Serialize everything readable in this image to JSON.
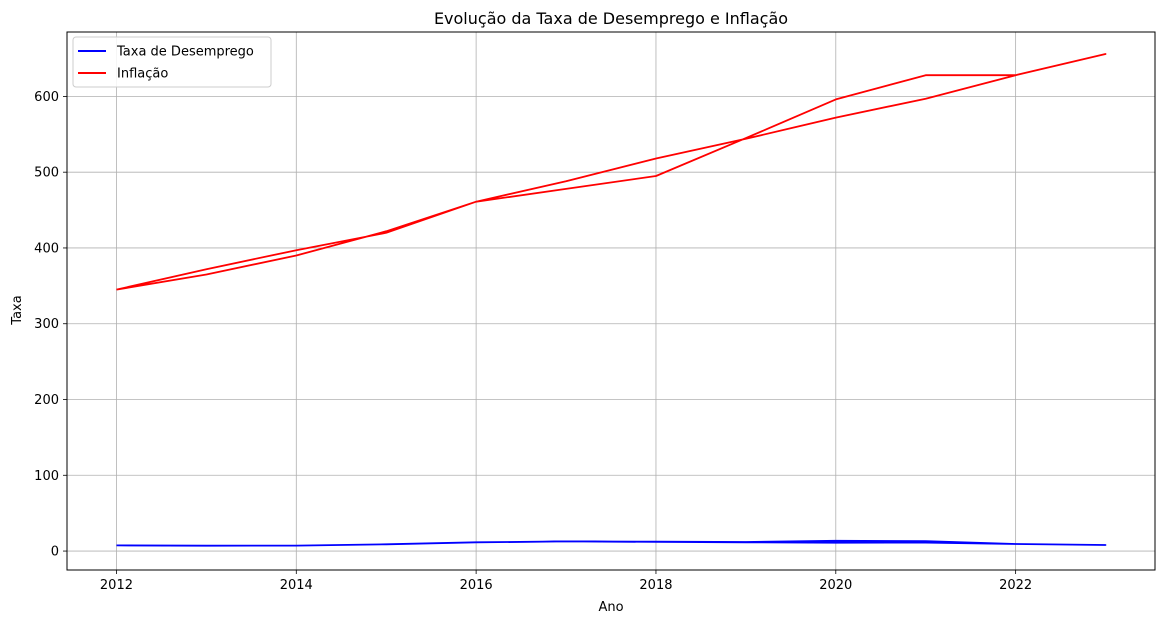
{
  "chart_data": {
    "type": "line",
    "title": "Evolução da Taxa de Desemprego e Inflação",
    "xlabel": "Ano",
    "ylabel": "Taxa",
    "xlim": [
      2011.45,
      2023.55
    ],
    "ylim": [
      -25,
      685
    ],
    "x_ticks": [
      2012,
      2014,
      2016,
      2018,
      2020,
      2022
    ],
    "x_tick_labels": [
      "2012",
      "2014",
      "2016",
      "2018",
      "2020",
      "2022"
    ],
    "y_ticks": [
      0,
      100,
      200,
      300,
      400,
      500,
      600
    ],
    "y_tick_labels": [
      "0",
      "100",
      "200",
      "300",
      "400",
      "500",
      "600"
    ],
    "grid": true,
    "legend_position": "top-left",
    "series": [
      {
        "name": "Taxa de Desemprego",
        "color": "#0000ff",
        "x": [
          2012,
          2013,
          2014,
          2015,
          2016,
          2017,
          2018,
          2019,
          2020,
          2021,
          2022,
          2023,
          2022,
          2021,
          2020,
          2019,
          2018,
          2017,
          2016
        ],
        "y": [
          7.4,
          7.1,
          7.2,
          8.9,
          11.6,
          12.7,
          12.3,
          11.9,
          13.5,
          13.2,
          9.3,
          8.0,
          9.3,
          11.1,
          11.0,
          11.5,
          12.1,
          12.7,
          11.4
        ]
      },
      {
        "name": "Inflação",
        "color": "#ff0000",
        "x": [
          2012,
          2013,
          2014,
          2015,
          2016,
          2017,
          2018,
          2019,
          2020,
          2021,
          2022,
          2023,
          2022,
          2021,
          2020,
          2019,
          2018,
          2017,
          2016,
          2015,
          2014,
          2013,
          2012
        ],
        "y": [
          345,
          365,
          390,
          422,
          461,
          478,
          495,
          545,
          596,
          628,
          628,
          656,
          628,
          597,
          572,
          544,
          518,
          488,
          461,
          420,
          397,
          372,
          345
        ]
      }
    ]
  }
}
